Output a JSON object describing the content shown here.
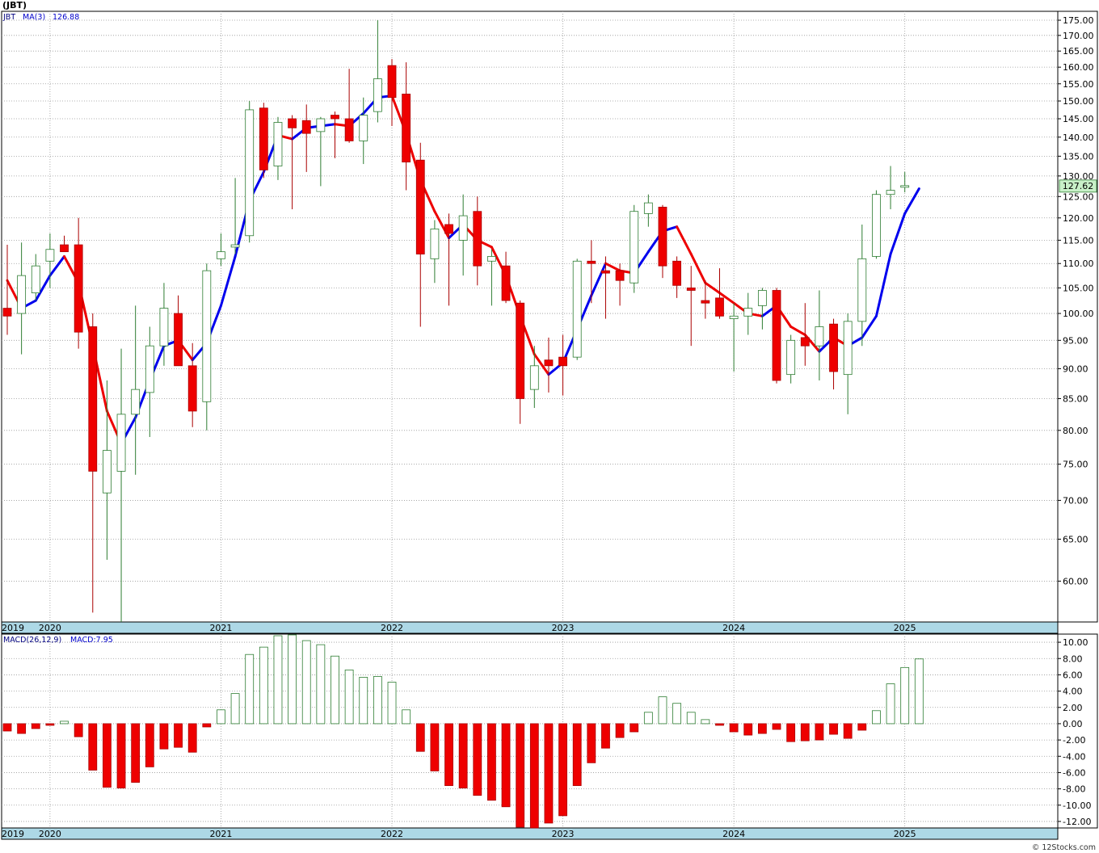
{
  "chart_data": [
    {
      "type": "candlestick",
      "title": "(JBT)",
      "symbol": "JBT",
      "period": "monthly",
      "indicator_label": "MA(3)",
      "indicator_value": "126.88",
      "last_price_label": "127.62",
      "last_price": 127.62,
      "y_scale": "log",
      "ylim": [
        55.5,
        178
      ],
      "y_ticks": [
        60,
        65,
        70,
        75,
        80,
        85,
        90,
        95,
        100,
        105,
        110,
        115,
        120,
        125,
        130,
        135,
        140,
        145,
        150,
        155,
        160,
        165,
        170,
        175
      ],
      "y_tick_labels": [
        "60.00",
        "65.00",
        "70.00",
        "75.00",
        "80.00",
        "85.00",
        "90.00",
        "95.00",
        "100.00",
        "105.00",
        "110.00",
        "115.00",
        "120.00",
        "125.00",
        "130.00",
        "135.00",
        "140.00",
        "145.00",
        "150.00",
        "155.00",
        "160.00",
        "165.00",
        "170.00",
        "175.00"
      ],
      "x_axis_labels": [
        "2019",
        "2020",
        "2021",
        "2022",
        "2023",
        "2024",
        "2025"
      ],
      "grid": true,
      "colors": {
        "up": "#2e7d32",
        "down": "#ee0000",
        "ma_up": "#0000ee",
        "ma_down": "#ee0000",
        "price_label_bg": "#c8f0c8"
      },
      "candles": [
        {
          "month": "2019-10",
          "open": 101.0,
          "high": 114.0,
          "low": 96.0,
          "close": 99.5
        },
        {
          "month": "2019-11",
          "open": 100.0,
          "high": 114.5,
          "low": 92.5,
          "close": 107.5
        },
        {
          "month": "2019-12",
          "open": 104.0,
          "high": 112.0,
          "low": 102.5,
          "close": 109.5
        },
        {
          "month": "2020-01",
          "open": 110.5,
          "high": 116.5,
          "low": 105.0,
          "close": 113.0
        },
        {
          "month": "2020-02",
          "open": 114.0,
          "high": 116.0,
          "low": 112.5,
          "close": 112.5
        },
        {
          "month": "2020-03",
          "open": 114.0,
          "high": 120.0,
          "low": 93.5,
          "close": 96.5
        },
        {
          "month": "2020-04",
          "open": 97.5,
          "high": 100.0,
          "low": 56.5,
          "close": 74.0
        },
        {
          "month": "2020-05",
          "open": 71.0,
          "high": 88.0,
          "low": 62.5,
          "close": 77.0
        },
        {
          "month": "2020-06",
          "open": 74.0,
          "high": 93.5,
          "low": 55.5,
          "close": 82.5
        },
        {
          "month": "2020-07",
          "open": 82.5,
          "high": 101.5,
          "low": 73.5,
          "close": 86.5
        },
        {
          "month": "2020-08",
          "open": 86.0,
          "high": 97.5,
          "low": 79.0,
          "close": 94.0
        },
        {
          "month": "2020-09",
          "open": 94.0,
          "high": 106.0,
          "low": 90.5,
          "close": 101.0
        },
        {
          "month": "2020-10",
          "open": 100.0,
          "high": 103.5,
          "low": 90.5,
          "close": 90.5
        },
        {
          "month": "2020-11",
          "open": 90.5,
          "high": 94.5,
          "low": 80.5,
          "close": 83.0
        },
        {
          "month": "2020-12",
          "open": 84.5,
          "high": 110.0,
          "low": 80.0,
          "close": 108.5
        },
        {
          "month": "2021-01",
          "open": 111.0,
          "high": 116.5,
          "low": 109.5,
          "close": 112.5
        },
        {
          "month": "2021-02",
          "open": 113.5,
          "high": 129.5,
          "low": 112.0,
          "close": 114.0
        },
        {
          "month": "2021-03",
          "open": 116.0,
          "high": 150.0,
          "low": 114.5,
          "close": 147.5
        },
        {
          "month": "2021-04",
          "open": 148.0,
          "high": 149.5,
          "low": 129.5,
          "close": 131.5
        },
        {
          "month": "2021-05",
          "open": 132.5,
          "high": 145.5,
          "low": 129.0,
          "close": 144.0
        },
        {
          "month": "2021-06",
          "open": 145.0,
          "high": 146.0,
          "low": 122.0,
          "close": 142.5
        },
        {
          "month": "2021-07",
          "open": 144.5,
          "high": 149.0,
          "low": 131.0,
          "close": 141.0
        },
        {
          "month": "2021-08",
          "open": 141.5,
          "high": 145.5,
          "low": 127.5,
          "close": 145.0
        },
        {
          "month": "2021-09",
          "open": 146.0,
          "high": 147.0,
          "low": 134.5,
          "close": 145.0
        },
        {
          "month": "2021-10",
          "open": 145.0,
          "high": 159.5,
          "low": 138.5,
          "close": 139.0
        },
        {
          "month": "2021-11",
          "open": 139.0,
          "high": 151.0,
          "low": 133.0,
          "close": 146.0
        },
        {
          "month": "2021-12",
          "open": 147.0,
          "high": 175.0,
          "low": 144.0,
          "close": 156.5
        },
        {
          "month": "2022-01",
          "open": 160.5,
          "high": 162.5,
          "low": 143.0,
          "close": 151.0
        },
        {
          "month": "2022-02",
          "open": 152.0,
          "high": 161.5,
          "low": 126.5,
          "close": 133.5
        },
        {
          "month": "2022-03",
          "open": 134.0,
          "high": 138.5,
          "low": 97.5,
          "close": 112.0
        },
        {
          "month": "2022-04",
          "open": 111.0,
          "high": 119.5,
          "low": 106.0,
          "close": 117.5
        },
        {
          "month": "2022-05",
          "open": 118.5,
          "high": 121.0,
          "low": 101.5,
          "close": 116.5
        },
        {
          "month": "2022-06",
          "open": 115.0,
          "high": 125.5,
          "low": 107.5,
          "close": 120.5
        },
        {
          "month": "2022-07",
          "open": 121.5,
          "high": 125.0,
          "low": 105.5,
          "close": 109.5
        },
        {
          "month": "2022-08",
          "open": 110.5,
          "high": 113.0,
          "low": 101.5,
          "close": 111.5
        },
        {
          "month": "2022-09",
          "open": 109.5,
          "high": 112.5,
          "low": 102.0,
          "close": 102.5
        },
        {
          "month": "2022-10",
          "open": 102.0,
          "high": 102.5,
          "low": 81.0,
          "close": 85.0
        },
        {
          "month": "2022-11",
          "open": 86.5,
          "high": 94.0,
          "low": 83.5,
          "close": 90.5
        },
        {
          "month": "2022-12",
          "open": 91.5,
          "high": 95.5,
          "low": 86.0,
          "close": 90.5
        },
        {
          "month": "2023-01",
          "open": 92.0,
          "high": 96.0,
          "low": 85.5,
          "close": 90.5
        },
        {
          "month": "2023-02",
          "open": 92.0,
          "high": 111.0,
          "low": 91.5,
          "close": 110.5
        },
        {
          "month": "2023-03",
          "open": 110.5,
          "high": 115.0,
          "low": 102.0,
          "close": 110.0
        },
        {
          "month": "2023-04",
          "open": 108.5,
          "high": 111.5,
          "low": 99.0,
          "close": 108.0
        },
        {
          "month": "2023-05",
          "open": 108.5,
          "high": 110.0,
          "low": 101.5,
          "close": 106.5
        },
        {
          "month": "2023-06",
          "open": 106.0,
          "high": 123.0,
          "low": 104.0,
          "close": 121.5
        },
        {
          "month": "2023-07",
          "open": 121.0,
          "high": 125.5,
          "low": 118.0,
          "close": 123.5
        },
        {
          "month": "2023-08",
          "open": 122.5,
          "high": 123.0,
          "low": 107.0,
          "close": 109.5
        },
        {
          "month": "2023-09",
          "open": 110.5,
          "high": 111.5,
          "low": 103.0,
          "close": 105.5
        },
        {
          "month": "2023-10",
          "open": 105.0,
          "high": 109.5,
          "low": 94.0,
          "close": 104.5
        },
        {
          "month": "2023-11",
          "open": 102.5,
          "high": 106.5,
          "low": 99.0,
          "close": 102.0
        },
        {
          "month": "2023-12",
          "open": 103.0,
          "high": 109.0,
          "low": 99.0,
          "close": 99.5
        },
        {
          "month": "2024-01",
          "open": 99.0,
          "high": 102.0,
          "low": 89.5,
          "close": 99.5
        },
        {
          "month": "2024-02",
          "open": 99.5,
          "high": 104.0,
          "low": 96.0,
          "close": 101.0
        },
        {
          "month": "2024-03",
          "open": 101.5,
          "high": 105.0,
          "low": 97.0,
          "close": 104.5
        },
        {
          "month": "2024-04",
          "open": 104.5,
          "high": 105.0,
          "low": 87.5,
          "close": 88.0
        },
        {
          "month": "2024-05",
          "open": 89.0,
          "high": 96.0,
          "low": 87.5,
          "close": 95.0
        },
        {
          "month": "2024-06",
          "open": 95.5,
          "high": 102.0,
          "low": 90.5,
          "close": 94.0
        },
        {
          "month": "2024-07",
          "open": 94.0,
          "high": 104.5,
          "low": 88.0,
          "close": 97.5
        },
        {
          "month": "2024-08",
          "open": 98.0,
          "high": 99.0,
          "low": 86.5,
          "close": 89.5
        },
        {
          "month": "2024-09",
          "open": 89.0,
          "high": 100.0,
          "low": 82.5,
          "close": 98.5
        },
        {
          "month": "2024-10",
          "open": 98.5,
          "high": 118.5,
          "low": 94.0,
          "close": 111.0
        },
        {
          "month": "2024-11",
          "open": 111.5,
          "high": 126.5,
          "low": 111.0,
          "close": 125.5
        },
        {
          "month": "2024-12",
          "open": 125.5,
          "high": 132.5,
          "low": 122.0,
          "close": 126.5
        },
        {
          "month": "2025-01",
          "open": 127.5,
          "high": 131.0,
          "low": 126.0,
          "close": 127.62
        }
      ],
      "ma3": [
        106.5,
        101.0,
        102.5,
        107.5,
        111.5,
        106.0,
        94.0,
        83.0,
        78.0,
        82.0,
        88.0,
        94.0,
        95.0,
        91.5,
        94.5,
        101.5,
        111.5,
        124.0,
        131.0,
        140.5,
        139.5,
        142.5,
        143.0,
        143.5,
        143.0,
        146.5,
        151.0,
        151.5,
        141.0,
        129.0,
        121.5,
        115.5,
        118.5,
        115.0,
        113.5,
        107.5,
        99.5,
        92.5,
        89.0,
        91.0,
        97.0,
        103.5,
        110.0,
        108.5,
        108.0,
        112.5,
        117.0,
        118.0,
        112.0,
        106.0,
        104.0,
        102.0,
        100.0,
        99.5,
        101.5,
        97.5,
        96.0,
        93.0,
        95.5,
        94.0,
        95.5,
        99.5,
        112.0,
        121.0,
        126.88
      ],
      "ma_direction": [
        "down",
        "down",
        "up",
        "up",
        "up",
        "down",
        "down",
        "down",
        "down",
        "up",
        "up",
        "up",
        "up",
        "down",
        "up",
        "up",
        "up",
        "up",
        "up",
        "up",
        "down",
        "up",
        "up",
        "up",
        "down",
        "up",
        "up",
        "up",
        "down",
        "down",
        "down",
        "down",
        "up",
        "down",
        "down",
        "down",
        "down",
        "down",
        "down",
        "up",
        "up",
        "up",
        "up",
        "down",
        "down",
        "up",
        "up",
        "up",
        "down",
        "down",
        "down",
        "down",
        "down",
        "down",
        "up",
        "down",
        "down",
        "down",
        "up",
        "down",
        "up",
        "up",
        "up",
        "up",
        "up"
      ]
    },
    {
      "type": "bar",
      "title": "MACD(26,12,9)",
      "value_label": "MACD:7.95",
      "ylim": [
        -12.8,
        11.0
      ],
      "y_ticks": [
        -12,
        -10,
        -8,
        -6,
        -4,
        -2,
        0,
        2,
        4,
        6,
        8,
        10
      ],
      "y_tick_labels": [
        "-12.00",
        "-10.00",
        "-8.00",
        "-6.00",
        "-4.00",
        "-2.00",
        "0.00",
        "2.00",
        "4.00",
        "6.00",
        "8.00",
        "10.00"
      ],
      "x_axis_labels": [
        "2019",
        "2020",
        "2021",
        "2022",
        "2023",
        "2024",
        "2025"
      ],
      "values": [
        -0.9,
        -1.2,
        -0.6,
        -0.2,
        0.3,
        -1.6,
        -5.7,
        -7.8,
        -7.9,
        -7.2,
        -5.3,
        -3.1,
        -2.9,
        -3.5,
        -0.4,
        1.7,
        3.7,
        8.5,
        9.4,
        10.8,
        10.9,
        10.2,
        9.7,
        8.3,
        6.6,
        5.7,
        5.8,
        5.1,
        1.7,
        -3.4,
        -5.8,
        -7.6,
        -7.9,
        -8.8,
        -9.4,
        -10.2,
        -12.7,
        -12.8,
        -12.2,
        -11.3,
        -7.6,
        -4.8,
        -3.0,
        -1.7,
        -1.0,
        1.4,
        3.3,
        2.5,
        1.4,
        0.5,
        -0.2,
        -1.0,
        -1.4,
        -1.2,
        -0.7,
        -2.2,
        -2.1,
        -2.0,
        -1.3,
        -1.8,
        -0.8,
        1.6,
        4.9,
        6.9,
        7.95
      ],
      "colors": {
        "positive": "#2e7d32",
        "negative": "#ee0000"
      }
    }
  ],
  "watermark": "© 12Stocks.com"
}
